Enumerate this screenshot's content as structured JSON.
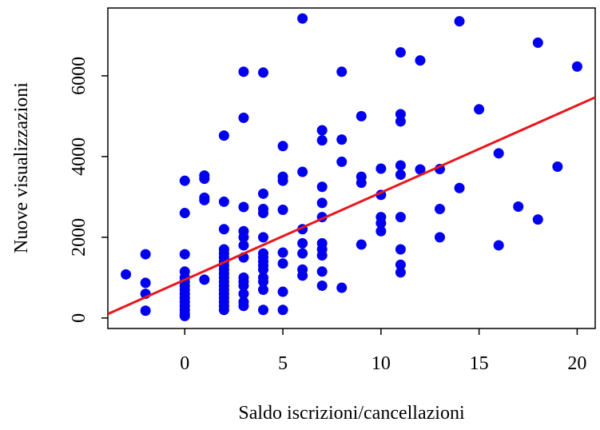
{
  "chart_data": {
    "type": "scatter",
    "x_label": "Saldo iscrizioni/cancellazioni",
    "y_label": "Nuove visualizzazioni",
    "xlim": [
      -3.92,
      20.92
    ],
    "ylim": [
      -260,
      7680
    ],
    "xticks": [
      0,
      5,
      10,
      15,
      20
    ],
    "yticks": [
      0,
      2000,
      4000,
      6000
    ],
    "series": [
      {
        "color": "#0000ee",
        "x": [
          -3,
          -2,
          -2,
          -2,
          -2,
          0,
          0,
          0,
          0,
          0,
          0,
          0,
          0,
          0,
          0,
          0,
          0,
          0,
          0,
          0,
          1,
          1,
          1,
          1,
          1,
          2,
          2,
          2,
          2,
          2,
          2,
          2,
          2,
          2,
          2,
          2,
          2,
          2,
          2,
          2,
          2,
          2,
          2,
          2,
          3,
          3,
          3,
          3,
          3,
          3,
          3,
          3,
          3,
          3,
          3,
          3,
          3,
          4,
          4,
          4,
          4,
          4,
          4,
          4,
          4,
          4,
          4,
          4,
          4,
          4,
          4,
          5,
          5,
          5,
          5,
          5,
          5,
          5,
          5,
          6,
          6,
          6,
          6,
          6,
          6,
          6,
          7,
          7,
          7,
          7,
          7,
          7,
          7,
          7,
          7,
          7,
          8,
          8,
          8,
          8,
          9,
          9,
          9,
          9,
          10,
          10,
          10,
          10,
          10,
          11,
          11,
          11,
          11,
          11,
          11,
          11,
          11,
          11,
          12,
          12,
          13,
          13,
          13,
          14,
          14,
          15,
          16,
          16,
          17,
          18,
          18,
          19,
          20
        ],
        "values": [
          1080,
          1580,
          870,
          600,
          180,
          3400,
          2600,
          1580,
          1150,
          1000,
          900,
          800,
          700,
          600,
          500,
          400,
          300,
          200,
          100,
          50,
          3530,
          3450,
          2980,
          2920,
          950,
          4520,
          2880,
          2200,
          1700,
          1600,
          1500,
          1400,
          1300,
          1200,
          1100,
          1000,
          900,
          800,
          700,
          600,
          500,
          400,
          300,
          200,
          6100,
          4960,
          2750,
          2150,
          2000,
          1800,
          1500,
          1000,
          900,
          800,
          600,
          400,
          300,
          6080,
          3080,
          2700,
          2600,
          2000,
          1600,
          1500,
          1400,
          1300,
          1200,
          1000,
          900,
          700,
          200,
          4260,
          3500,
          3400,
          2680,
          1620,
          1350,
          650,
          200,
          7420,
          3620,
          2200,
          1850,
          1600,
          1200,
          1050,
          4650,
          4400,
          3250,
          2850,
          2500,
          1850,
          1700,
          1550,
          1150,
          800,
          6100,
          4420,
          3870,
          750,
          5000,
          3500,
          3350,
          1820,
          3700,
          3050,
          2500,
          2350,
          2150,
          6580,
          5050,
          4870,
          3780,
          3550,
          2500,
          1700,
          1320,
          1130,
          6380,
          3680,
          3690,
          2700,
          2000,
          7350,
          3220,
          5170,
          4080,
          1800,
          2760,
          6820,
          2440,
          3750,
          6230
        ]
      }
    ],
    "fit_line": {
      "color": "#e8171b",
      "x": [
        -3.92,
        20.92
      ],
      "values": [
        100,
        5466
      ]
    }
  }
}
